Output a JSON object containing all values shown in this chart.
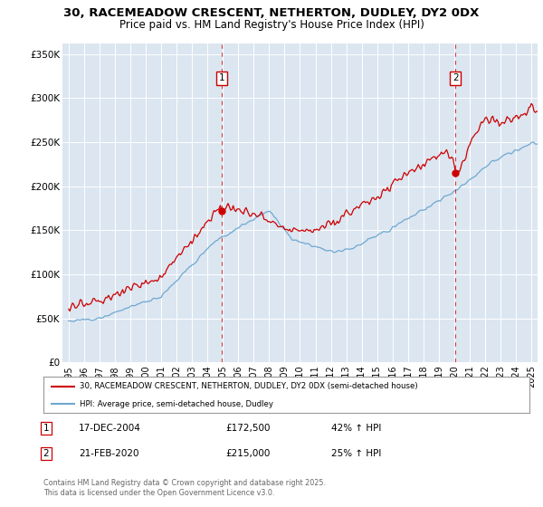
{
  "title_line1": "30, RACEMEADOW CRESCENT, NETHERTON, DUDLEY, DY2 0DX",
  "title_line2": "Price paid vs. HM Land Registry's House Price Index (HPI)",
  "background_color": "#dce6f1",
  "red_line_color": "#cc0000",
  "blue_line_color": "#6fa8d0",
  "marker1_x": 2004.92,
  "marker1_price": 172500,
  "marker2_x": 2020.08,
  "marker2_price": 215000,
  "legend_entry1": "30, RACEMEADOW CRESCENT, NETHERTON, DUDLEY, DY2 0DX (semi-detached house)",
  "legend_entry2": "HPI: Average price, semi-detached house, Dudley",
  "table_row1": [
    "1",
    "17-DEC-2004",
    "£172,500",
    "42% ↑ HPI"
  ],
  "table_row2": [
    "2",
    "21-FEB-2020",
    "£215,000",
    "25% ↑ HPI"
  ],
  "footer": "Contains HM Land Registry data © Crown copyright and database right 2025.\nThis data is licensed under the Open Government Licence v3.0.",
  "ylim": [
    0,
    362500
  ],
  "yticks": [
    0,
    50000,
    100000,
    150000,
    200000,
    250000,
    300000,
    350000
  ],
  "ytick_labels": [
    "£0",
    "£50K",
    "£100K",
    "£150K",
    "£200K",
    "£250K",
    "£300K",
    "£350K"
  ],
  "xlim_left": 1994.6,
  "xlim_right": 2025.4
}
